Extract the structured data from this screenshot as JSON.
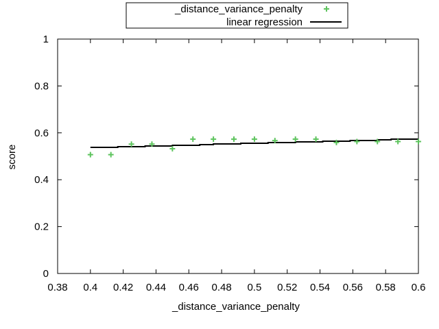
{
  "chart_data": {
    "type": "scatter",
    "title": "",
    "xlabel": "_distance_variance_penalty",
    "ylabel": "score",
    "xlim": [
      0.38,
      0.6
    ],
    "ylim": [
      0,
      1
    ],
    "xticks": [
      "0.38",
      "0.4",
      "0.42",
      "0.44",
      "0.46",
      "0.48",
      "0.5",
      "0.52",
      "0.54",
      "0.56",
      "0.58",
      "0.6"
    ],
    "yticks": [
      "0",
      "0.2",
      "0.4",
      "0.6",
      "0.8",
      "1"
    ],
    "grid": false,
    "legend_position": "top-center",
    "series": [
      {
        "name": "_distance_variance_penalty",
        "kind": "points",
        "marker": "plus",
        "color": "#5ec45e",
        "x": [
          0.4,
          0.4125,
          0.425,
          0.4375,
          0.45,
          0.4625,
          0.475,
          0.4875,
          0.5,
          0.5125,
          0.525,
          0.5375,
          0.55,
          0.5625,
          0.575,
          0.5875,
          0.6
        ],
        "y": [
          0.507,
          0.507,
          0.552,
          0.552,
          0.532,
          0.573,
          0.573,
          0.573,
          0.573,
          0.567,
          0.573,
          0.573,
          0.559,
          0.563,
          0.563,
          0.563,
          0.563
        ]
      },
      {
        "name": "linear regression",
        "kind": "step",
        "color": "#000000",
        "x": [
          0.4,
          0.6
        ],
        "y": [
          0.537,
          0.575
        ]
      }
    ]
  }
}
